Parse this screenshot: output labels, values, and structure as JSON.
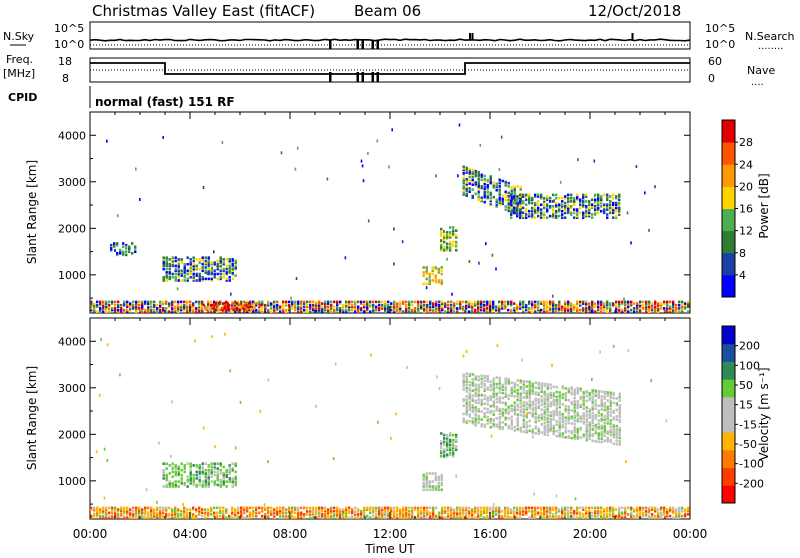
{
  "header": {
    "station": "Christmas Valley East (fitACF)",
    "beam": "Beam 06",
    "date": "12/Oct/2018",
    "mode": "normal (fast) 151 RF"
  },
  "strip_labels": {
    "nsky": "N.Sky",
    "nsearch": "N.Search",
    "nsearch_dots": "........",
    "freq_line1": "Freq.",
    "freq_line2": "[MHz]",
    "nave": "Nave",
    "nave_dots": "....",
    "cpid": "CPID",
    "nsky_ticks": [
      "10^5",
      "10^0"
    ],
    "freq_ticks": [
      "18",
      "8"
    ],
    "nave_ticks": [
      "60",
      "0"
    ]
  },
  "colors": {
    "power_scale": [
      "#0000ff",
      "#1a3fa6",
      "#2e7d32",
      "#4caf50",
      "#ffd400",
      "#ff9900",
      "#ff5500",
      "#e00000"
    ],
    "velocity_scale": [
      "#ff0000",
      "#ff3c00",
      "#ff7a00",
      "#ffb400",
      "#bebebe",
      "#bebebe",
      "#66cc33",
      "#2e8b57",
      "#1a4fa0",
      "#0000cc"
    ]
  },
  "chart_data": [
    {
      "type": "heatmap",
      "name": "power",
      "xlabel": "",
      "ylabel": "Slant Range [km]",
      "y_ticks": [
        1000,
        2000,
        3000,
        4000
      ],
      "ylim": [
        180,
        4500
      ],
      "xlim_hours": [
        0,
        24
      ],
      "colorbar_label": "Power [dB]",
      "colorbar_ticks": [
        "4",
        "8",
        "12",
        "16",
        "20",
        "24",
        "28"
      ],
      "regions": [
        {
          "t0": 0.0,
          "t1": 24.0,
          "r0": 180,
          "r1": 420,
          "level": "mixed"
        },
        {
          "t0": 4.5,
          "t1": 6.8,
          "r0": 220,
          "r1": 380,
          "level": "high"
        },
        {
          "t0": 0.8,
          "t1": 1.8,
          "r0": 1400,
          "r1": 1650,
          "level": "low"
        },
        {
          "t0": 2.9,
          "t1": 5.9,
          "r0": 850,
          "r1": 1350,
          "level": "low-mid"
        },
        {
          "t0": 13.3,
          "t1": 14.1,
          "r0": 780,
          "r1": 1150,
          "level": "mid-high"
        },
        {
          "t0": 14.0,
          "t1": 14.6,
          "r0": 1500,
          "r1": 2000,
          "level": "mid"
        },
        {
          "t0": 14.9,
          "t1": 17.2,
          "r0": 2700,
          "r1": 3300,
          "level": "low-mid"
        },
        {
          "t0": 16.8,
          "t1": 21.2,
          "r0": 2200,
          "r1": 2700,
          "level": "low-mid"
        }
      ]
    },
    {
      "type": "heatmap",
      "name": "velocity",
      "xlabel": "Time UT",
      "ylabel": "Slant Range [km]",
      "x_ticks": [
        "00:00",
        "04:00",
        "08:00",
        "12:00",
        "16:00",
        "20:00",
        "00:00"
      ],
      "y_ticks": [
        1000,
        2000,
        3000,
        4000
      ],
      "ylim": [
        180,
        4500
      ],
      "xlim_hours": [
        0,
        24
      ],
      "colorbar_label": "Velocity [m s⁻¹]",
      "colorbar_ticks": [
        "-200",
        "-100",
        "-50",
        "-15",
        "15",
        "50",
        "100",
        "200"
      ],
      "regions": [
        {
          "t0": 0.0,
          "t1": 24.0,
          "r0": 180,
          "r1": 420,
          "level": "mixed"
        },
        {
          "t0": 2.9,
          "t1": 5.9,
          "r0": 850,
          "r1": 1350,
          "level": "green"
        },
        {
          "t0": 13.3,
          "t1": 14.1,
          "r0": 780,
          "r1": 1150,
          "level": "grey"
        },
        {
          "t0": 14.0,
          "t1": 14.6,
          "r0": 1500,
          "r1": 2000,
          "level": "grey-green"
        },
        {
          "t0": 14.9,
          "t1": 21.2,
          "r0": 2200,
          "r1": 3300,
          "level": "grey"
        }
      ]
    }
  ]
}
